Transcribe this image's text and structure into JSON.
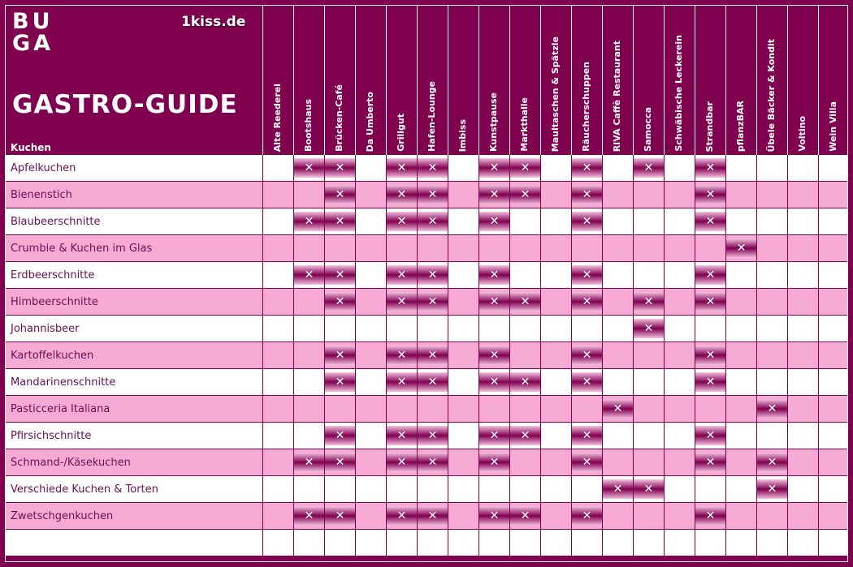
{
  "header": {
    "logo_line1": "BU",
    "logo_line2": "GA",
    "brand": "1kiss.de",
    "title": "GASTRO-GUIDE",
    "column_label": "Kuchen"
  },
  "colors": {
    "background": "#800050",
    "row_odd": "#ffffff",
    "row_even": "#f7aad4"
  },
  "mark_symbol": "✕",
  "venues": [
    "Alte Reederei",
    "Bootshaus",
    "Brücken-Café",
    "Da Umberto",
    "Grillgut",
    "Hafen-Lounge",
    "Imbiss",
    "Kunstpause",
    "Markthalle",
    "Maultaschen & Spätzle",
    "Räucherschuppen",
    "RIVA   Caffè Restaurant",
    "Samocca",
    "Schwäbische Leckerein",
    "Strandbar",
    "pflanzBAR",
    "Übele Bäcker & Kondit",
    "Voltino",
    "Wein Villa"
  ],
  "rows": [
    {
      "item": "Apfelkuchen",
      "marks": [
        0,
        1,
        1,
        0,
        1,
        1,
        0,
        1,
        1,
        0,
        1,
        0,
        1,
        0,
        1,
        0,
        0,
        0,
        0
      ]
    },
    {
      "item": "Bienenstich",
      "marks": [
        0,
        0,
        1,
        0,
        1,
        1,
        0,
        1,
        1,
        0,
        1,
        0,
        0,
        0,
        1,
        0,
        0,
        0,
        0
      ]
    },
    {
      "item": "Blaubeerschnitte",
      "marks": [
        0,
        1,
        1,
        0,
        1,
        1,
        0,
        1,
        0,
        0,
        1,
        0,
        0,
        0,
        1,
        0,
        0,
        0,
        0
      ]
    },
    {
      "item": "Crumbie & Kuchen im Glas",
      "marks": [
        0,
        0,
        0,
        0,
        0,
        0,
        0,
        0,
        0,
        0,
        0,
        0,
        0,
        0,
        0,
        1,
        0,
        0,
        0
      ]
    },
    {
      "item": "Erdbeerschnitte",
      "marks": [
        0,
        1,
        1,
        0,
        1,
        1,
        0,
        1,
        0,
        0,
        1,
        0,
        0,
        0,
        1,
        0,
        0,
        0,
        0
      ]
    },
    {
      "item": "Himbeerschnitte",
      "marks": [
        0,
        0,
        1,
        0,
        1,
        1,
        0,
        1,
        1,
        0,
        1,
        0,
        1,
        0,
        1,
        0,
        0,
        0,
        0
      ]
    },
    {
      "item": "Johannisbeer",
      "marks": [
        0,
        0,
        0,
        0,
        0,
        0,
        0,
        0,
        0,
        0,
        0,
        0,
        1,
        0,
        0,
        0,
        0,
        0,
        0
      ]
    },
    {
      "item": "Kartoffelkuchen",
      "marks": [
        0,
        0,
        1,
        0,
        1,
        1,
        0,
        1,
        0,
        0,
        1,
        0,
        0,
        0,
        1,
        0,
        0,
        0,
        0
      ]
    },
    {
      "item": "Mandarinenschnitte",
      "marks": [
        0,
        0,
        1,
        0,
        1,
        1,
        0,
        1,
        1,
        0,
        1,
        0,
        0,
        0,
        1,
        0,
        0,
        0,
        0
      ]
    },
    {
      "item": "Pasticceria Italiana",
      "marks": [
        0,
        0,
        0,
        0,
        0,
        0,
        0,
        0,
        0,
        0,
        0,
        1,
        0,
        0,
        0,
        0,
        1,
        0,
        0
      ]
    },
    {
      "item": "Pfirsichschnitte",
      "marks": [
        0,
        0,
        1,
        0,
        1,
        1,
        0,
        1,
        1,
        0,
        1,
        0,
        0,
        0,
        1,
        0,
        0,
        0,
        0
      ]
    },
    {
      "item": "Schmand-/Käsekuchen",
      "marks": [
        0,
        1,
        1,
        0,
        1,
        1,
        0,
        1,
        0,
        0,
        1,
        0,
        0,
        0,
        1,
        0,
        1,
        0,
        0
      ]
    },
    {
      "item": "Verschiede Kuchen & Torten",
      "marks": [
        0,
        0,
        0,
        0,
        0,
        0,
        0,
        0,
        0,
        0,
        0,
        1,
        1,
        0,
        0,
        0,
        1,
        0,
        0
      ]
    },
    {
      "item": "Zwetschgenkuchen",
      "marks": [
        0,
        1,
        1,
        0,
        1,
        1,
        0,
        1,
        1,
        0,
        1,
        0,
        0,
        0,
        1,
        0,
        0,
        0,
        0
      ]
    },
    {
      "item": "",
      "marks": [
        0,
        0,
        0,
        0,
        0,
        0,
        0,
        0,
        0,
        0,
        0,
        0,
        0,
        0,
        0,
        0,
        0,
        0,
        0
      ]
    }
  ]
}
